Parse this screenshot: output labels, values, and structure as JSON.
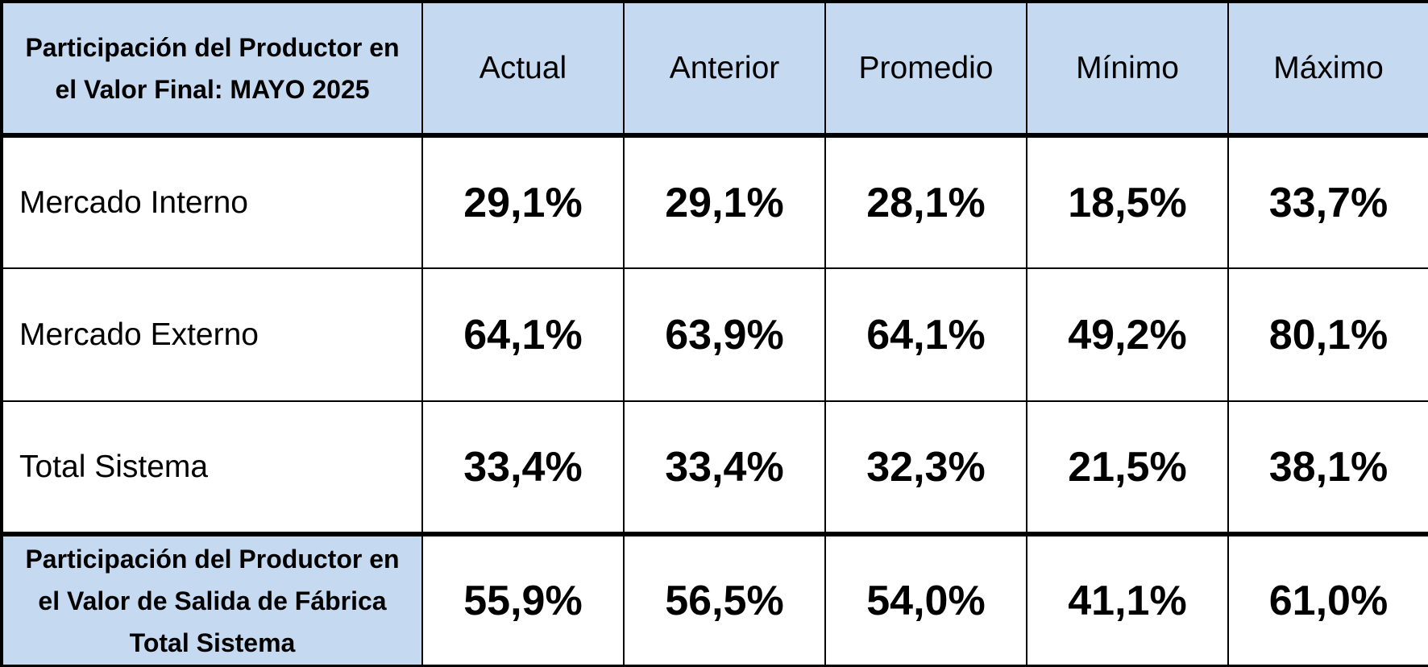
{
  "header": {
    "title": "Participación del Productor en el Valor Final:  MAYO 2025",
    "columns": [
      "Actual",
      "Anterior",
      "Promedio",
      "Mínimo",
      "Máximo"
    ]
  },
  "rows": [
    {
      "label": "Mercado Interno",
      "values": [
        "29,1%",
        "29,1%",
        "28,1%",
        "18,5%",
        "33,7%"
      ]
    },
    {
      "label": "Mercado Externo",
      "values": [
        "64,1%",
        "63,9%",
        "64,1%",
        "49,2%",
        "80,1%"
      ]
    },
    {
      "label": "Total Sistema",
      "values": [
        "33,4%",
        "33,4%",
        "32,3%",
        "21,5%",
        "38,1%"
      ]
    }
  ],
  "footer": {
    "label": "Participación del Productor en el Valor de Salida de Fábrica Total Sistema",
    "values": [
      "55,9%",
      "56,5%",
      "54,0%",
      "41,1%",
      "61,0%"
    ]
  }
}
